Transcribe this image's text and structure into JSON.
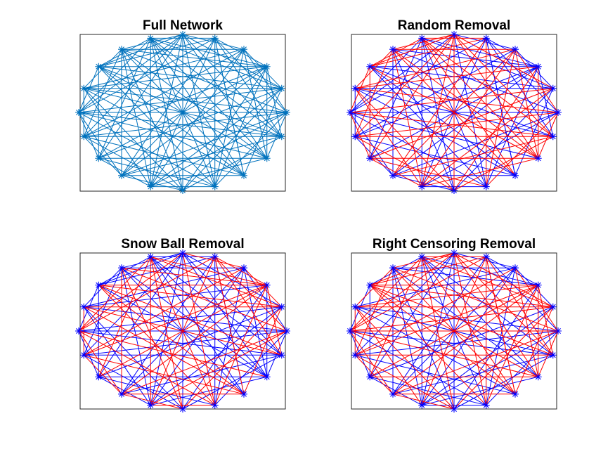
{
  "figure": {
    "panels": [
      {
        "title": "Full Network"
      },
      {
        "title": "Random Removal"
      },
      {
        "title": "Snow Ball Removal"
      },
      {
        "title": "Right Censoring Removal"
      }
    ]
  },
  "colors": {
    "full_network_edges": "#0072BD",
    "kept_edges": "#0000FF",
    "removed_edges": "#FF0000",
    "nodes": "#0000FF"
  },
  "network": {
    "node_count": 20,
    "layout": "circle",
    "node_marker": "asterisk",
    "edges": [
      [
        0,
        2
      ],
      [
        0,
        6
      ],
      [
        0,
        9
      ],
      [
        0,
        13
      ],
      [
        0,
        17
      ],
      [
        1,
        5
      ],
      [
        1,
        8
      ],
      [
        1,
        12
      ],
      [
        1,
        15
      ],
      [
        1,
        19
      ],
      [
        2,
        4
      ],
      [
        2,
        7
      ],
      [
        2,
        11
      ],
      [
        2,
        14
      ],
      [
        2,
        18
      ],
      [
        3,
        6
      ],
      [
        3,
        10
      ],
      [
        3,
        13
      ],
      [
        3,
        16
      ],
      [
        3,
        19
      ],
      [
        4,
        8
      ],
      [
        4,
        11
      ],
      [
        4,
        15
      ],
      [
        4,
        17
      ],
      [
        5,
        9
      ],
      [
        5,
        12
      ],
      [
        5,
        16
      ],
      [
        5,
        18
      ],
      [
        6,
        10
      ],
      [
        6,
        14
      ],
      [
        6,
        17
      ],
      [
        7,
        11
      ],
      [
        7,
        15
      ],
      [
        7,
        19
      ],
      [
        8,
        12
      ],
      [
        8,
        16
      ],
      [
        8,
        18
      ],
      [
        9,
        13
      ],
      [
        9,
        17
      ],
      [
        10,
        14
      ],
      [
        10,
        18
      ],
      [
        11,
        16
      ],
      [
        11,
        19
      ],
      [
        12,
        15
      ],
      [
        13,
        17
      ],
      [
        13,
        19
      ],
      [
        14,
        18
      ],
      [
        0,
        10
      ],
      [
        1,
        11
      ],
      [
        2,
        12
      ],
      [
        3,
        14
      ],
      [
        4,
        13
      ],
      [
        5,
        15
      ],
      [
        6,
        16
      ],
      [
        7,
        17
      ],
      [
        8,
        19
      ],
      [
        9,
        19
      ],
      [
        0,
        4
      ],
      [
        1,
        3
      ],
      [
        5,
        7
      ],
      [
        9,
        11
      ],
      [
        12,
        14
      ],
      [
        15,
        17
      ],
      [
        16,
        18
      ],
      [
        0,
        15
      ],
      [
        2,
        9
      ],
      [
        4,
        19
      ],
      [
        6,
        12
      ],
      [
        7,
        3
      ],
      [
        8,
        14
      ],
      [
        10,
        16
      ],
      [
        12,
        18
      ],
      [
        1,
        17
      ],
      [
        3,
        9
      ],
      [
        5,
        11
      ],
      [
        0,
        7
      ],
      [
        2,
        16
      ],
      [
        4,
        10
      ],
      [
        6,
        19
      ],
      [
        8,
        1
      ],
      [
        11,
        13
      ],
      [
        14,
        16
      ],
      [
        15,
        19
      ],
      [
        17,
        19
      ],
      [
        0,
        18
      ],
      [
        3,
        18
      ],
      [
        7,
        13
      ],
      [
        9,
        15
      ],
      [
        10,
        12
      ],
      [
        13,
        15
      ],
      [
        1,
        6
      ],
      [
        2,
        5
      ],
      [
        14,
        0
      ],
      [
        16,
        4
      ],
      [
        18,
        7
      ],
      [
        19,
        10
      ],
      [
        11,
        0
      ],
      [
        12,
        3
      ],
      [
        5,
        14
      ],
      [
        8,
        17
      ],
      [
        9,
        1
      ],
      [
        15,
        6
      ],
      [
        17,
        3
      ],
      [
        18,
        11
      ]
    ],
    "removed": {
      "random": [
        1,
        3,
        4,
        7,
        9,
        11,
        12,
        14,
        16,
        18,
        21,
        22,
        24,
        26,
        28,
        29,
        31,
        33,
        36,
        37,
        39,
        41,
        44,
        46,
        47,
        49,
        51,
        54,
        55,
        57,
        59,
        62,
        63,
        65,
        67,
        68,
        70,
        72,
        75,
        76,
        78,
        80,
        83,
        84,
        86,
        89,
        91,
        92,
        94,
        96,
        98,
        100,
        101,
        103
      ],
      "snow_ball": [
        0,
        2,
        5,
        8,
        10,
        13,
        15,
        17,
        19,
        20,
        23,
        25,
        27,
        30,
        32,
        34,
        35,
        38,
        40,
        42,
        43,
        45,
        48,
        50,
        53,
        56,
        58,
        60,
        61,
        64,
        66,
        69,
        71,
        73,
        74,
        77,
        79,
        81,
        82,
        85,
        87,
        88,
        90,
        93,
        95,
        97,
        99,
        102
      ],
      "right_censoring": [
        1,
        2,
        4,
        6,
        8,
        9,
        11,
        13,
        15,
        17,
        18,
        20,
        22,
        23,
        25,
        27,
        29,
        30,
        32,
        34,
        36,
        38,
        39,
        41,
        43,
        45,
        46,
        48,
        50,
        52,
        54,
        55,
        57,
        59,
        61,
        63,
        64,
        66,
        68,
        70,
        72,
        73,
        75,
        77,
        79,
        81,
        82,
        84,
        86,
        88,
        90,
        91,
        93,
        95,
        97,
        99,
        100,
        102
      ]
    }
  }
}
